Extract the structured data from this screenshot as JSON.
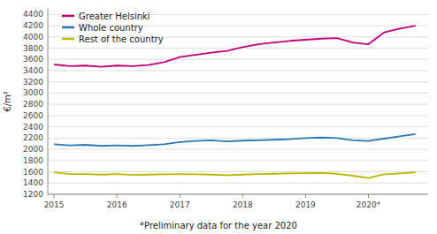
{
  "chart_data": {
    "type": "line",
    "ylabel": "€/m²",
    "annotations": [
      "*Preliminary data for the year 2020"
    ],
    "x": [
      2015.0,
      2015.25,
      2015.5,
      2015.75,
      2016.0,
      2016.25,
      2016.5,
      2016.75,
      2017.0,
      2017.25,
      2017.5,
      2017.75,
      2018.0,
      2018.25,
      2018.5,
      2018.75,
      2019.0,
      2019.25,
      2019.5,
      2019.75,
      2020.0,
      2020.25,
      2020.5,
      2020.75
    ],
    "series": [
      {
        "name": "Greater Helsinki",
        "color": "#c0007a",
        "values": [
          3510,
          3480,
          3490,
          3470,
          3490,
          3480,
          3500,
          3550,
          3640,
          3680,
          3720,
          3750,
          3820,
          3870,
          3900,
          3930,
          3950,
          3970,
          3980,
          3900,
          3870,
          4080,
          4150,
          4200
        ]
      },
      {
        "name": "Whole country",
        "color": "#2878b5",
        "values": [
          2090,
          2070,
          2080,
          2060,
          2070,
          2060,
          2075,
          2090,
          2130,
          2150,
          2160,
          2140,
          2155,
          2160,
          2170,
          2180,
          2200,
          2210,
          2200,
          2160,
          2150,
          2190,
          2230,
          2270
        ]
      },
      {
        "name": "Rest of the country",
        "color": "#b8b800",
        "values": [
          1590,
          1560,
          1560,
          1550,
          1560,
          1545,
          1550,
          1555,
          1560,
          1555,
          1550,
          1540,
          1550,
          1560,
          1565,
          1570,
          1575,
          1580,
          1565,
          1530,
          1490,
          1555,
          1570,
          1590
        ]
      }
    ],
    "xlim": [
      2014.9,
      2020.95
    ],
    "xticks": [
      2015,
      2016,
      2017,
      2018,
      2019,
      {
        "value": 2020,
        "label": "2020*"
      }
    ],
    "ylim": [
      1200,
      4500
    ],
    "yticks": [
      1200,
      1400,
      1600,
      1800,
      2000,
      2200,
      2400,
      2600,
      2800,
      3000,
      3200,
      3400,
      3600,
      3800,
      4000,
      4200,
      4400
    ],
    "grid": true,
    "legend": "upper left"
  }
}
